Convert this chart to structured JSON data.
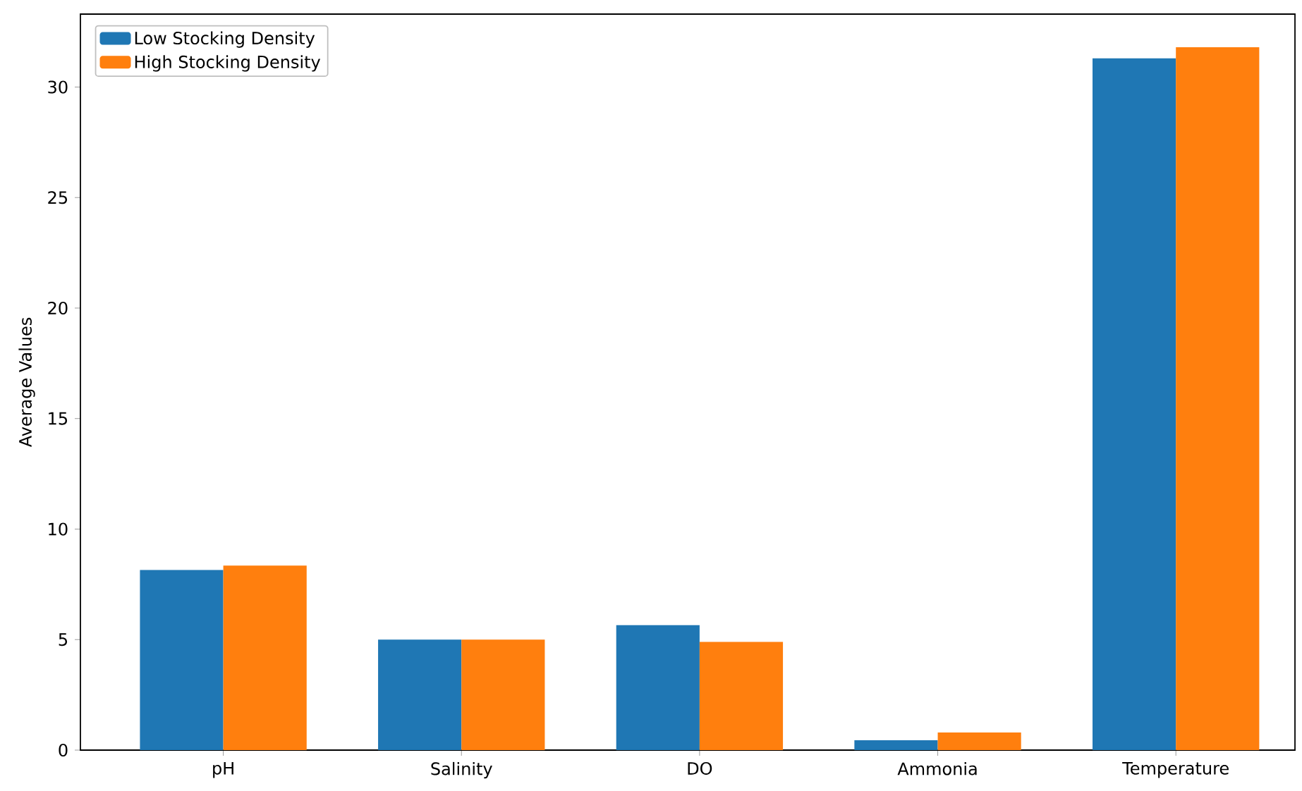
{
  "chart_data": {
    "type": "bar",
    "ylabel": "Average Values",
    "categories": [
      "pH",
      "Salinity",
      "DO",
      "Ammonia",
      "Temperature"
    ],
    "series": [
      {
        "name": "Low Stocking Density",
        "color": "#1f77b4",
        "values": [
          8.15,
          5.0,
          5.65,
          0.45,
          31.3
        ]
      },
      {
        "name": "High Stocking Density",
        "color": "#ff7f0e",
        "values": [
          8.35,
          5.0,
          4.9,
          0.8,
          31.8
        ]
      }
    ],
    "ylim": [
      0,
      33.3
    ],
    "yticks": [
      0,
      5,
      10,
      15,
      20,
      25,
      30
    ],
    "legend": "top left",
    "grid": false
  }
}
